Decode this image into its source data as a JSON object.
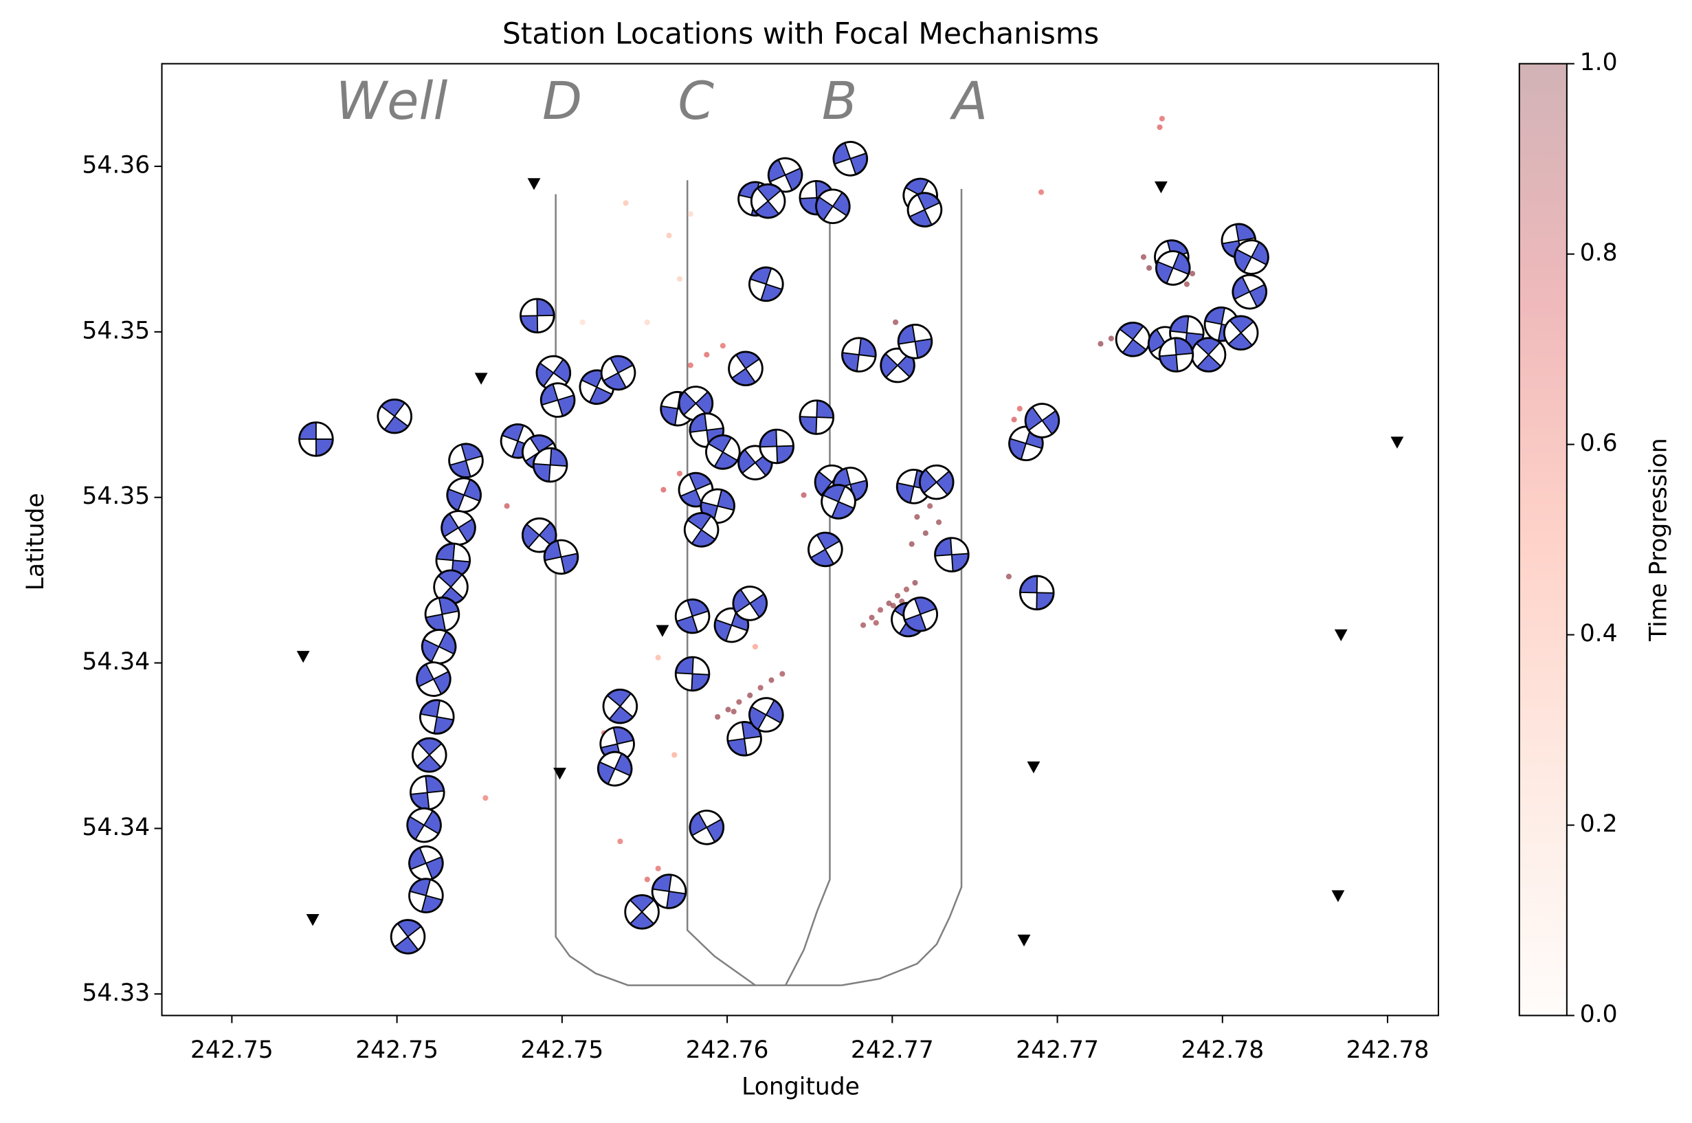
{
  "chart_data": {
    "type": "scatter",
    "title": "Station Locations with Focal Mechanisms",
    "xlabel": "Longitude",
    "ylabel": "Latitude",
    "xlim": [
      242.74288,
      242.78154
    ],
    "ylim": [
      54.32935,
      54.3581
    ],
    "xticks": [
      {
        "value": 242.745,
        "label": "242.75"
      },
      {
        "value": 242.75,
        "label": "242.75"
      },
      {
        "value": 242.755,
        "label": "242.75"
      },
      {
        "value": 242.76,
        "label": "242.76"
      },
      {
        "value": 242.765,
        "label": "242.77"
      },
      {
        "value": 242.77,
        "label": "242.77"
      },
      {
        "value": 242.775,
        "label": "242.78"
      },
      {
        "value": 242.78,
        "label": "242.78"
      }
    ],
    "yticks": [
      {
        "value": 54.33,
        "label": "54.33"
      },
      {
        "value": 54.335,
        "label": "54.34"
      },
      {
        "value": 54.34,
        "label": "54.34"
      },
      {
        "value": 54.345,
        "label": "54.35"
      },
      {
        "value": 54.35,
        "label": "54.35"
      },
      {
        "value": 54.355,
        "label": "54.36"
      }
    ],
    "annotations": [
      "Well",
      "D",
      "C",
      "B",
      "A"
    ],
    "annotation_color": "#808080",
    "well_path_color": "#808080",
    "events": {
      "colormap": "Reds",
      "x": [
        242.76412,
        242.76438,
        242.76464,
        242.7649,
        242.76516,
        242.76543,
        242.76569,
        242.76451,
        242.76503,
        242.76529,
        242.75971,
        242.76003,
        242.76036,
        242.76069,
        242.76101,
        242.76134,
        242.76167,
        242.7602,
        242.76575,
        242.76601,
        242.76614,
        242.76559,
        242.76641,
        242.77131,
        242.77163,
        242.77261,
        242.77278,
        242.77392,
        242.77409,
        242.7651,
        242.76853,
        242.76232,
        242.75333,
        242.7517,
        242.75889,
        242.75938,
        242.75987,
        242.75807,
        242.75856,
        242.75627,
        242.75634,
        242.75758,
        242.75791,
        242.7731,
        242.77317,
        242.76951,
        242.76886,
        242.76869,
        242.75676,
        242.75268,
        242.75824,
        242.75856,
        242.75758,
        242.75791,
        242.7584,
        242.75562,
        242.76085,
        242.76281,
        242.75693,
        242.75889
      ],
      "y": [
        54.34114,
        54.34137,
        54.3416,
        54.3418,
        54.34203,
        54.34222,
        54.34242,
        54.34121,
        54.34173,
        54.34186,
        54.33837,
        54.33859,
        54.33882,
        54.33902,
        54.33925,
        54.33948,
        54.33967,
        54.33853,
        54.34441,
        54.34392,
        54.34474,
        54.34359,
        54.34425,
        54.34964,
        54.3498,
        54.35226,
        54.35193,
        54.35144,
        54.35176,
        54.35029,
        54.34261,
        54.34507,
        54.34474,
        54.34441,
        54.34899,
        54.34931,
        54.34958,
        54.34523,
        54.34572,
        54.33788,
        54.33722,
        54.33346,
        54.33379,
        54.35618,
        54.35644,
        54.35422,
        54.34768,
        54.34735,
        54.33461,
        54.33592,
        54.35291,
        54.3516,
        54.35029,
        54.34016,
        54.33722,
        54.35029,
        54.34049,
        54.3431,
        54.35389,
        54.35356
      ],
      "time": [
        0.95,
        0.97,
        0.93,
        0.98,
        0.96,
        0.94,
        0.99,
        0.92,
        0.97,
        0.95,
        0.96,
        0.98,
        0.95,
        0.99,
        0.94,
        0.97,
        0.93,
        0.96,
        0.97,
        0.99,
        0.95,
        0.98,
        0.96,
        0.98,
        0.96,
        0.97,
        0.99,
        0.95,
        0.97,
        0.96,
        0.97,
        0.85,
        0.8,
        0.85,
        0.7,
        0.72,
        0.68,
        0.74,
        0.7,
        0.66,
        0.69,
        0.71,
        0.67,
        0.73,
        0.7,
        0.68,
        0.72,
        0.75,
        0.65,
        0.6,
        0.3,
        0.25,
        0.2,
        0.35,
        0.4,
        0.15,
        0.45,
        0.5,
        0.3,
        0.2
      ]
    },
    "mechanisms": {
      "color": "#5560d6",
      "x": [
        242.74755,
        242.74993,
        242.75209,
        242.75203,
        242.75186,
        242.7517,
        242.75163,
        242.75137,
        242.75127,
        242.75111,
        242.75121,
        242.75098,
        242.75092,
        242.75082,
        242.75088,
        242.75088,
        242.75033,
        242.75425,
        242.75474,
        242.75487,
        242.75366,
        242.75431,
        242.75464,
        242.75431,
        242.75497,
        242.75605,
        242.7567,
        242.7585,
        242.75905,
        242.75938,
        242.75987,
        242.75905,
        242.75971,
        242.76085,
        242.7615,
        242.75922,
        242.75895,
        242.76013,
        242.76069,
        242.75895,
        242.75676,
        242.75667,
        242.7566,
        242.75938,
        242.75824,
        242.75742,
        242.76052,
        242.76118,
        242.76176,
        242.76085,
        242.76124,
        242.76271,
        242.7632,
        242.76373,
        242.76118,
        242.76056,
        242.76271,
        242.76317,
        242.76373,
        242.76337,
        242.76297,
        242.76399,
        242.76516,
        242.76569,
        242.76585,
        242.76598,
        242.76565,
        242.76634,
        242.7668,
        242.76549,
        242.76585,
        242.76905,
        242.76954,
        242.76938,
        242.77229,
        242.77346,
        242.7735,
        242.77327,
        242.77392,
        242.77458,
        242.77549,
        242.77588,
        242.77582,
        242.77497,
        242.77556,
        242.7736
      ],
      "y": [
        54.34676,
        54.34745,
        54.34611,
        54.34507,
        54.34408,
        54.3431,
        54.34229,
        54.34147,
        54.34049,
        54.33951,
        54.33837,
        54.33722,
        54.33608,
        54.3351,
        54.33395,
        54.33297,
        54.33173,
        54.35049,
        54.34876,
        54.34794,
        54.3467,
        54.34637,
        54.34598,
        54.34386,
        54.3432,
        54.34833,
        54.34876,
        54.34768,
        54.34784,
        54.34703,
        54.34637,
        54.34523,
        54.34474,
        54.34605,
        54.34654,
        54.34402,
        54.34141,
        54.34114,
        54.3418,
        54.33967,
        54.33869,
        54.33755,
        54.3368,
        54.33503,
        54.3331,
        54.33248,
        54.33771,
        54.33843,
        54.35474,
        54.35402,
        54.35395,
        54.35405,
        54.35379,
        54.35523,
        54.35144,
        54.34889,
        54.34742,
        54.34546,
        54.34539,
        54.34487,
        54.34343,
        54.34931,
        54.34899,
        54.34971,
        54.35412,
        54.35369,
        54.34533,
        54.34546,
        54.34327,
        54.34131,
        54.34147,
        54.34663,
        54.34732,
        54.34212,
        54.34977,
        54.35226,
        54.35193,
        54.34964,
        54.34997,
        54.34931,
        54.35275,
        54.35226,
        54.35121,
        54.35023,
        54.34997,
        54.34931
      ]
    },
    "stations": {
      "color": "#000000",
      "x": [
        242.75415,
        242.75255,
        242.74716,
        242.74745,
        242.75493,
        242.75804,
        242.77314,
        242.76928,
        242.76899,
        242.77859,
        242.78029,
        242.7785
      ],
      "y": [
        54.35448,
        54.3486,
        54.3402,
        54.33225,
        54.33667,
        54.34098,
        54.35438,
        54.33686,
        54.33163,
        54.34085,
        54.34667,
        54.33297
      ]
    },
    "colorbar": {
      "label": "Time Progression",
      "lim": [
        0,
        1
      ],
      "ticks": [
        {
          "value": 0,
          "label": "0.0"
        },
        {
          "value": 0.2,
          "label": "0.2"
        },
        {
          "value": 0.4,
          "label": "0.4"
        },
        {
          "value": 0.6,
          "label": "0.6"
        },
        {
          "value": 0.8,
          "label": "0.8"
        },
        {
          "value": 1,
          "label": "1.0"
        }
      ]
    }
  }
}
